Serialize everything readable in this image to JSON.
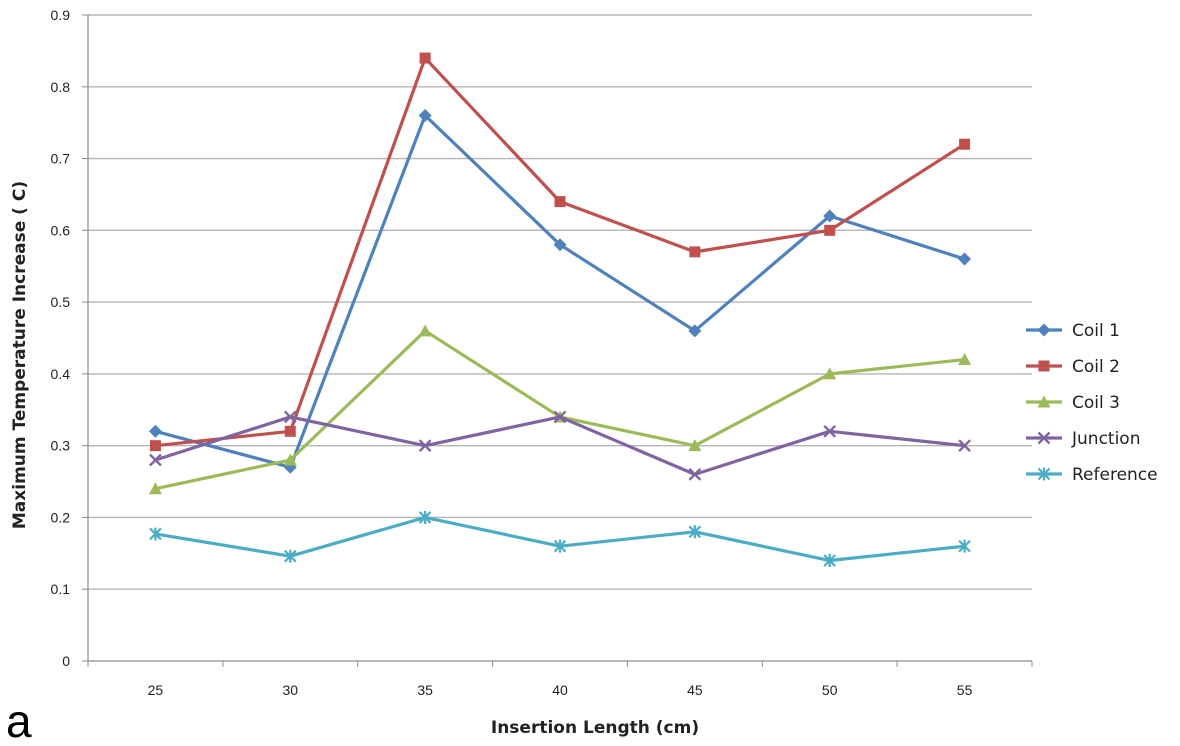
{
  "panel_label": "a",
  "chart_data": {
    "type": "line",
    "title": "",
    "xlabel": "Insertion Length (cm)",
    "ylabel": "Maximum Temperature Increase ( C)",
    "categories": [
      "25",
      "30",
      "35",
      "40",
      "45",
      "50",
      "55"
    ],
    "ylim": [
      0,
      0.9
    ],
    "yticks": [
      0,
      0.1,
      0.2,
      0.3,
      0.4,
      0.5,
      0.6,
      0.7,
      0.8,
      0.9
    ],
    "ytick_labels": [
      "0",
      "0.1",
      "0.2",
      "0.3",
      "0.4",
      "0.5",
      "0.6",
      "0.7",
      "0.8",
      "0.9"
    ],
    "grid": "horizontal",
    "legend_position": "right",
    "series": [
      {
        "name": "Coil 1",
        "color": "#4F81BD",
        "marker": "diamond",
        "values": [
          0.32,
          0.27,
          0.76,
          0.58,
          0.46,
          0.62,
          0.56
        ]
      },
      {
        "name": "Coil 2",
        "color": "#C0504D",
        "marker": "square",
        "values": [
          0.3,
          0.32,
          0.84,
          0.64,
          0.57,
          0.6,
          0.72
        ]
      },
      {
        "name": "Coil 3",
        "color": "#9BBB59",
        "marker": "triangle",
        "values": [
          0.24,
          0.28,
          0.46,
          0.34,
          0.3,
          0.4,
          0.42
        ]
      },
      {
        "name": "Junction",
        "color": "#8064A2",
        "marker": "x",
        "values": [
          0.28,
          0.34,
          0.3,
          0.34,
          0.26,
          0.32,
          0.3
        ]
      },
      {
        "name": "Reference",
        "color": "#4BACC6",
        "marker": "star",
        "values": [
          0.177,
          0.146,
          0.2,
          0.16,
          0.18,
          0.14,
          0.16
        ]
      }
    ]
  }
}
